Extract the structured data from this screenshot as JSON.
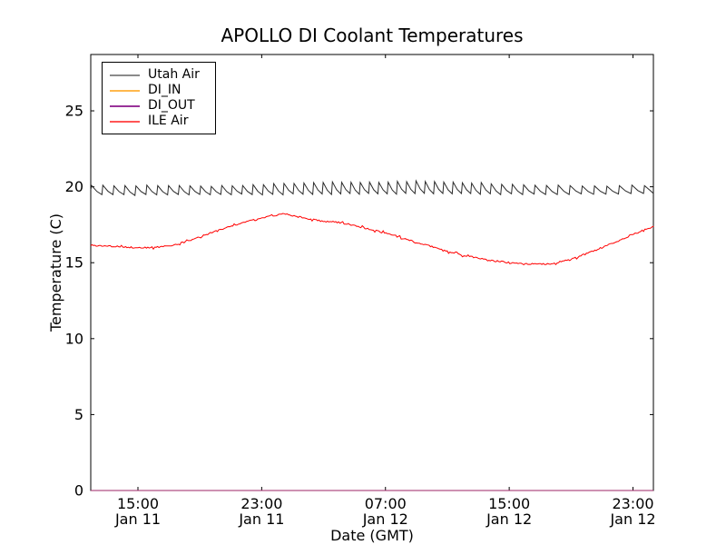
{
  "chart_data": {
    "type": "line",
    "title": "APOLLO DI Coolant Temperatures",
    "xlabel": "Date (GMT)",
    "ylabel": "Temperature (C)",
    "x_axis": {
      "start_hour": 11.95,
      "end_hour": 48.32,
      "ticks": [
        {
          "hour": 15,
          "time": "15:00",
          "date": "Jan 11"
        },
        {
          "hour": 23,
          "time": "23:00",
          "date": "Jan 11"
        },
        {
          "hour": 31,
          "time": "07:00",
          "date": "Jan 12"
        },
        {
          "hour": 39,
          "time": "15:00",
          "date": "Jan 12"
        },
        {
          "hour": 47,
          "time": "23:00",
          "date": "Jan 12"
        }
      ]
    },
    "y_axis": {
      "min": 0,
      "max": 28.71,
      "ticks": [
        0,
        5,
        10,
        15,
        20,
        25
      ]
    },
    "legend": {
      "position": "upper left"
    },
    "series": [
      {
        "name": "Utah Air",
        "color": "#2b2b2b",
        "legend_color": "#8a8a8a",
        "shape": "sawtooth",
        "trough_keys": [
          [
            12,
            19.45
          ],
          [
            24,
            19.5
          ],
          [
            32,
            19.55
          ],
          [
            40,
            19.5
          ],
          [
            48.4,
            19.55
          ]
        ],
        "peak_keys": [
          [
            12,
            20.1
          ],
          [
            20,
            20.05
          ],
          [
            24,
            20.2
          ],
          [
            27,
            20.3
          ],
          [
            30,
            20.3
          ],
          [
            33,
            20.38
          ],
          [
            35,
            20.3
          ],
          [
            37,
            20.25
          ],
          [
            39,
            20.15
          ],
          [
            41,
            20.1
          ],
          [
            44,
            20.05
          ],
          [
            48.4,
            20.1
          ]
        ],
        "period_keys": [
          [
            12,
            0.72
          ],
          [
            24,
            0.66
          ],
          [
            27,
            0.6
          ],
          [
            36,
            0.6
          ],
          [
            39,
            0.72
          ],
          [
            44,
            0.8
          ],
          [
            48.4,
            0.82
          ]
        ],
        "noise": 0.035,
        "seed": 7
      },
      {
        "name": "DI_IN",
        "color": "#ffa500",
        "legend_color": "#ffb84d",
        "shape": "flat",
        "value": 0.0
      },
      {
        "name": "DI_OUT",
        "color": "#800080",
        "legend_color": "#993399",
        "shape": "flat",
        "value": 0.0
      },
      {
        "name": "ILE Air",
        "color": "#ff0000",
        "legend_color": "#ff5555",
        "shape": "keypoints",
        "points": [
          [
            11.95,
            16.15
          ],
          [
            13,
            16.1
          ],
          [
            14,
            16.05
          ],
          [
            15,
            15.98
          ],
          [
            16,
            16.0
          ],
          [
            17,
            16.1
          ],
          [
            18,
            16.35
          ],
          [
            19,
            16.7
          ],
          [
            20,
            17.05
          ],
          [
            21,
            17.4
          ],
          [
            22,
            17.7
          ],
          [
            23,
            17.95
          ],
          [
            24,
            18.15
          ],
          [
            24.4,
            18.25
          ],
          [
            25,
            18.1
          ],
          [
            26,
            17.9
          ],
          [
            26.8,
            17.75
          ],
          [
            27.5,
            17.72
          ],
          [
            28.3,
            17.6
          ],
          [
            29,
            17.45
          ],
          [
            30,
            17.2
          ],
          [
            31,
            16.95
          ],
          [
            32,
            16.65
          ],
          [
            33,
            16.35
          ],
          [
            34,
            16.05
          ],
          [
            35,
            15.75
          ],
          [
            36,
            15.5
          ],
          [
            37,
            15.3
          ],
          [
            38,
            15.12
          ],
          [
            39,
            15.02
          ],
          [
            40,
            14.95
          ],
          [
            41,
            14.9
          ],
          [
            41.7,
            14.92
          ],
          [
            42.5,
            15.1
          ],
          [
            43.5,
            15.4
          ],
          [
            44.5,
            15.8
          ],
          [
            45.5,
            16.2
          ],
          [
            46.5,
            16.65
          ],
          [
            47.3,
            17.0
          ],
          [
            48.32,
            17.35
          ]
        ],
        "noise": 0.05,
        "seed": 3
      }
    ]
  }
}
